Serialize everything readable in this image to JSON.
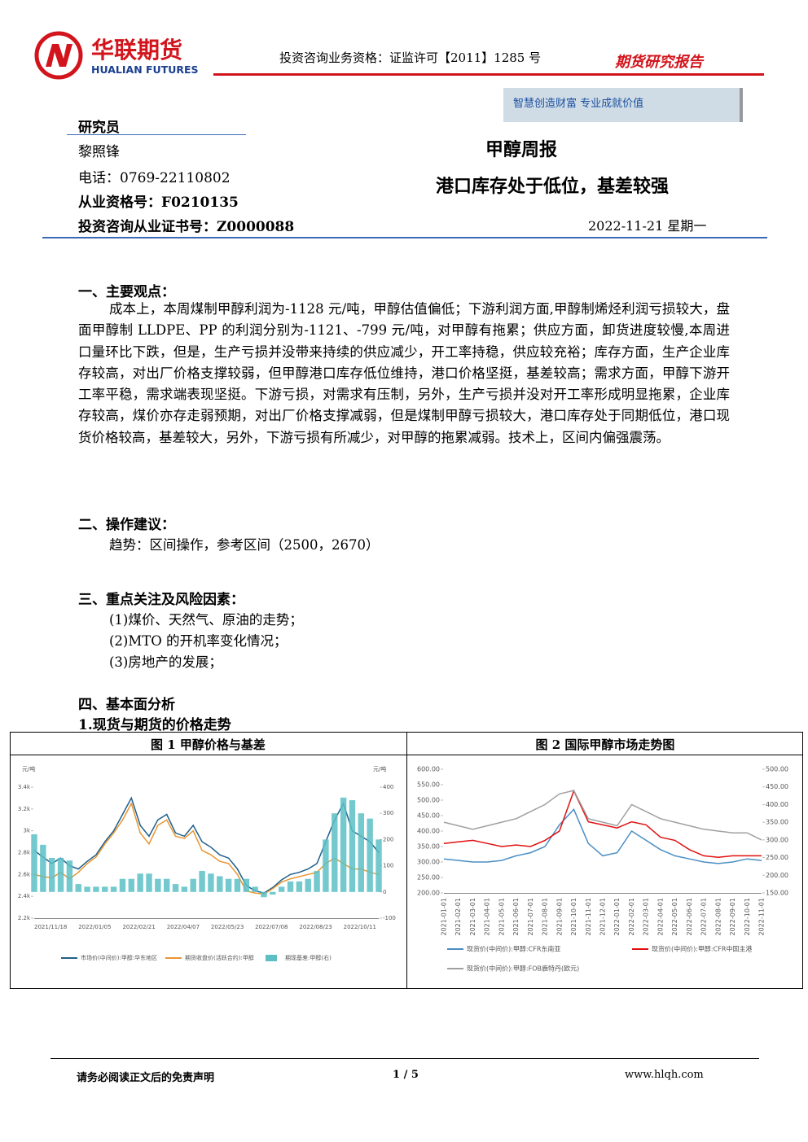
{
  "header": {
    "logo_cn": "华联期货",
    "logo_en": "HUALIAN FUTURES",
    "qualification": "投资咨询业务资格：证监许可【2011】1285 号",
    "report_type": "期货研究报告",
    "slogan": "智慧创造财富  专业成就价值"
  },
  "researcher": {
    "label": "研究员",
    "name": "黎照锋",
    "phone": "电话：0769-22110802",
    "license": "从业资格号：F0210135",
    "cert": "投资咨询从业证书号：Z0000088"
  },
  "title": "甲醇周报",
  "subtitle": "港口库存处于低位，基差较强",
  "date": "2022-11-21 星期一",
  "sections": [
    {
      "heading": "一、主要观点：",
      "text": "成本上，本周煤制甲醇利润为-1128 元/吨，甲醇估值偏低；下游利润方面,甲醇制烯烃利润亏损较大，盘面甲醇制 LLDPE、PP 的利润分别为-1121、-799 元/吨，对甲醇有拖累；供应方面，卸货进度较慢,本周进口量环比下跌，但是，生产亏损并没带来持续的供应减少，开工率持稳，供应较充裕；库存方面，生产企业库存较高，对出厂价格支撑较弱，但甲醇港口库存低位维持，港口价格坚挺，基差较高；需求方面，甲醇下游开工率平稳，需求端表现坚挺。下游亏损，对需求有压制，另外，生产亏损并没对开工率形成明显拖累，企业库存较高，煤价亦存走弱预期，对出厂价格支撑减弱，但是煤制甲醇亏损较大，港口库存处于同期低位，港口现货价格较高，基差较大，另外，下游亏损有所减少，对甲醇的拖累减弱。技术上，区间内偏强震荡。"
    },
    {
      "heading": "二、操作建议：",
      "items": [
        "趋势：区间操作，参考区间（2500，2670）"
      ]
    },
    {
      "heading": "三、重点关注及风险因素：",
      "items": [
        "(1)煤价、天然气、原油的走势；",
        "(2)MTO 的开机率变化情况；",
        "(3)房地产的发展；"
      ]
    },
    {
      "heading": "四、基本面分析",
      "subheading": "1.现货与期货的价格走势"
    }
  ],
  "chart_data": [
    {
      "type": "combo",
      "title": "图 1  甲醇价格与基差",
      "ylabel": "元/吨",
      "y2label": "元/吨",
      "categories": [
        "2021/11/18",
        null,
        null,
        null,
        null,
        "2022/01/05",
        null,
        null,
        null,
        null,
        "2022/02/21",
        null,
        null,
        null,
        null,
        "2022/04/07",
        null,
        null,
        null,
        null,
        "2022/05/23",
        null,
        null,
        null,
        null,
        "2022/07/08",
        null,
        null,
        null,
        null,
        "2022/08/23",
        null,
        null,
        null,
        null,
        "2022/10/11",
        null,
        null,
        null,
        null
      ],
      "ylim": [
        2200,
        3400
      ],
      "yticks": [
        {
          "value": 2200,
          "label": "2.2k"
        },
        {
          "value": 2400,
          "label": "2.4k"
        },
        {
          "value": 2600,
          "label": "2.6k"
        },
        {
          "value": 2800,
          "label": "2.8k"
        },
        {
          "value": 3000,
          "label": "3k"
        },
        {
          "value": 3200,
          "label": "3.2k"
        },
        {
          "value": 3400,
          "label": "3.4k"
        }
      ],
      "y2lim": [
        -100,
        400
      ],
      "y2ticks": [
        -100,
        0,
        100,
        200,
        300,
        400
      ],
      "grid": false,
      "series": [
        {
          "name": "市场价(中间价):甲醇:华东地区",
          "type": "line",
          "color": "#1f5f8b",
          "values": [
            2820,
            2760,
            2700,
            2750,
            2680,
            2650,
            2720,
            2780,
            2900,
            3000,
            3150,
            3300,
            3050,
            2950,
            3100,
            3150,
            2980,
            2950,
            3050,
            2900,
            2850,
            2780,
            2750,
            2650,
            2500,
            2450,
            2430,
            2480,
            2550,
            2600,
            2620,
            2650,
            2700,
            2900,
            3100,
            3250,
            3000,
            2950,
            2900,
            2800
          ]
        },
        {
          "name": "期货收盘价(活跃合约):甲醇",
          "type": "line",
          "color": "#e8962e",
          "values": [
            2600,
            2580,
            2570,
            2620,
            2560,
            2620,
            2700,
            2760,
            2880,
            2980,
            3100,
            3250,
            2980,
            2880,
            3050,
            3100,
            2950,
            2930,
            3000,
            2820,
            2780,
            2720,
            2700,
            2600,
            2450,
            2430,
            2420,
            2470,
            2530,
            2560,
            2580,
            2600,
            2620,
            2700,
            2750,
            2700,
            2650,
            2650,
            2620,
            2600
          ]
        },
        {
          "name": "期现基差:甲醇(右)",
          "type": "bar",
          "axis": "y2",
          "color": "#5bbfc4",
          "values": [
            220,
            180,
            130,
            130,
            120,
            30,
            20,
            20,
            20,
            20,
            50,
            50,
            70,
            70,
            50,
            50,
            30,
            20,
            50,
            80,
            70,
            60,
            50,
            50,
            50,
            20,
            -20,
            -10,
            20,
            40,
            40,
            50,
            80,
            200,
            300,
            360,
            350,
            300,
            280,
            200
          ]
        }
      ]
    },
    {
      "type": "line",
      "title": "图 2  国际甲醇市场走势图",
      "categories": [
        "2021-01-01",
        "2021-02-01",
        "2021-03-01",
        "2021-04-01",
        "2021-05-01",
        "2021-06-01",
        "2021-07-01",
        "2021-08-01",
        "2021-09-01",
        "2021-10-01",
        "2021-11-01",
        "2021-12-01",
        "2022-01-01",
        "2022-02-01",
        "2022-03-01",
        "2022-04-01",
        "2022-05-01",
        "2022-06-01",
        "2022-07-01",
        "2022-08-01",
        "2022-09-01",
        "2022-10-01",
        "2022-11-01"
      ],
      "ylim": [
        200,
        600
      ],
      "yticks": [
        {
          "value": 200,
          "label": "200.00"
        },
        {
          "value": 250,
          "label": "250.00"
        },
        {
          "value": 300,
          "label": "300.00"
        },
        {
          "value": 350,
          "label": "350.00"
        },
        {
          "value": 400,
          "label": "400.00"
        },
        {
          "value": 450,
          "label": "450.00"
        },
        {
          "value": 500,
          "label": "500.00"
        },
        {
          "value": 550,
          "label": "550.00"
        },
        {
          "value": 600,
          "label": "600.00"
        }
      ],
      "y2lim": [
        150,
        500
      ],
      "y2ticks": [
        {
          "value": 150,
          "label": "150.00"
        },
        {
          "value": 200,
          "label": "200.00"
        },
        {
          "value": 250,
          "label": "250.00"
        },
        {
          "value": 300,
          "label": "300.00"
        },
        {
          "value": 350,
          "label": "350.00"
        },
        {
          "value": 400,
          "label": "400.00"
        },
        {
          "value": 450,
          "label": "450.00"
        },
        {
          "value": 500,
          "label": "500.00"
        }
      ],
      "grid": false,
      "series": [
        {
          "name": "现货价(中间价):甲醇:CFR东南亚",
          "type": "line",
          "color": "#4a8ec4",
          "values": [
            310,
            305,
            300,
            300,
            305,
            320,
            330,
            350,
            420,
            470,
            360,
            320,
            330,
            400,
            370,
            340,
            320,
            310,
            300,
            295,
            300,
            310,
            305
          ]
        },
        {
          "name": "现货价(中间价):甲醇:CFR中国主港",
          "type": "line",
          "color": "#e01010",
          "values": [
            360,
            365,
            370,
            360,
            350,
            355,
            350,
            370,
            400,
            530,
            430,
            420,
            410,
            430,
            420,
            380,
            370,
            340,
            320,
            315,
            320,
            320,
            320
          ]
        },
        {
          "name": "现货价(中间价):甲醇:FOB鹿特丹(欧元)",
          "type": "line",
          "axis": "y2",
          "color": "#a0a0a0",
          "values": [
            350,
            340,
            330,
            340,
            350,
            360,
            380,
            400,
            430,
            440,
            360,
            350,
            340,
            400,
            380,
            360,
            350,
            340,
            330,
            325,
            320,
            320,
            300
          ]
        }
      ]
    }
  ],
  "footer": {
    "disclaimer": "请务必阅读正文后的免责声明",
    "page": "1 / 5",
    "url": "www.hlqh.com"
  }
}
